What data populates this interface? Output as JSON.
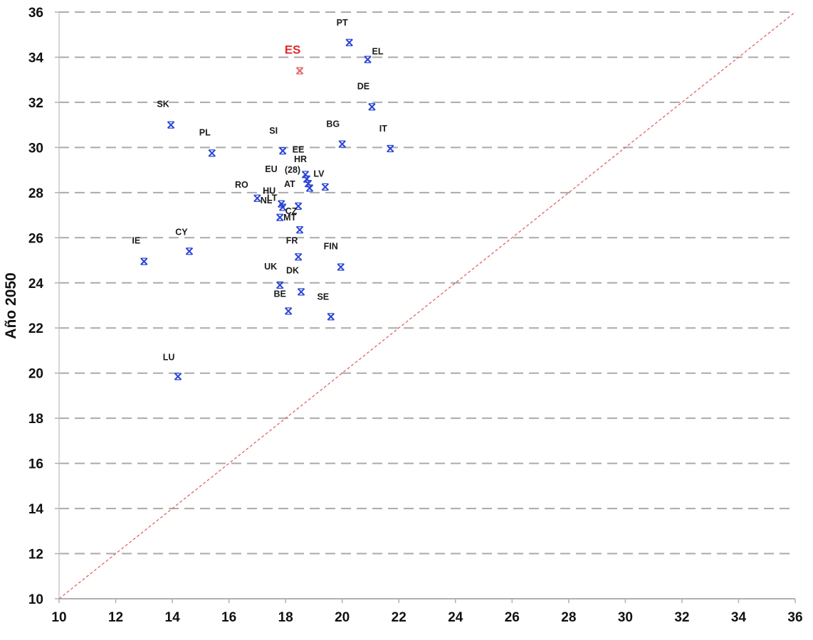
{
  "chart_data": {
    "type": "scatter",
    "title": "",
    "xlabel": "",
    "ylabel": "Año 2050",
    "xlim": [
      10,
      36
    ],
    "ylim": [
      10,
      36
    ],
    "xticks": [
      10,
      12,
      14,
      16,
      18,
      20,
      22,
      24,
      26,
      28,
      30,
      32,
      34,
      36
    ],
    "yticks": [
      10,
      12,
      14,
      16,
      18,
      20,
      22,
      24,
      26,
      28,
      30,
      32,
      34,
      36
    ],
    "grid": "horizontal-dashed",
    "reference_line": {
      "type": "diagonal y=x",
      "color": "#e06666",
      "style": "dashed"
    },
    "marker": "x",
    "colors": {
      "default": "#2a44d4",
      "highlight": "#e06666",
      "highlight_label": "#e02a2a",
      "grid": "#aaaaaa"
    },
    "points": [
      {
        "label": "PT",
        "x": 20.25,
        "y": 34.65
      },
      {
        "label": "EL",
        "x": 20.9,
        "y": 33.9
      },
      {
        "label": "ES",
        "x": 18.5,
        "y": 33.4,
        "highlight": true
      },
      {
        "label": "DE",
        "x": 21.05,
        "y": 31.8
      },
      {
        "label": "SK",
        "x": 13.95,
        "y": 31.0
      },
      {
        "label": "PL",
        "x": 15.4,
        "y": 29.75
      },
      {
        "label": "SI",
        "x": 17.9,
        "y": 29.85
      },
      {
        "label": "BG",
        "x": 20.0,
        "y": 30.15
      },
      {
        "label": "IT",
        "x": 21.7,
        "y": 29.95
      },
      {
        "label": "EE",
        "x": 18.7,
        "y": 28.8
      },
      {
        "label": "HR",
        "x": 18.75,
        "y": 28.6
      },
      {
        "label": "EU (28)",
        "x": 18.8,
        "y": 28.4
      },
      {
        "label": "LV",
        "x": 18.85,
        "y": 28.2
      },
      {
        "label": "AT",
        "x": 19.4,
        "y": 28.25
      },
      {
        "label": "RO",
        "x": 17.0,
        "y": 27.75
      },
      {
        "label": "HU",
        "x": 17.85,
        "y": 27.5
      },
      {
        "label": "LT",
        "x": 17.9,
        "y": 27.35
      },
      {
        "label": "NL",
        "x": 18.45,
        "y": 27.4
      },
      {
        "label": "MT",
        "x": 17.8,
        "y": 26.9
      },
      {
        "label": "CZ",
        "x": 18.5,
        "y": 26.35
      },
      {
        "label": "IE",
        "x": 13.0,
        "y": 24.95
      },
      {
        "label": "CY",
        "x": 14.6,
        "y": 25.4
      },
      {
        "label": "FR",
        "x": 18.45,
        "y": 25.15
      },
      {
        "label": "FIN",
        "x": 19.95,
        "y": 24.7
      },
      {
        "label": "UK",
        "x": 17.8,
        "y": 23.9
      },
      {
        "label": "DK",
        "x": 18.55,
        "y": 23.6
      },
      {
        "label": "BE",
        "x": 18.1,
        "y": 22.75
      },
      {
        "label": "SE",
        "x": 19.6,
        "y": 22.5
      },
      {
        "label": "LU",
        "x": 14.2,
        "y": 19.85
      }
    ]
  }
}
